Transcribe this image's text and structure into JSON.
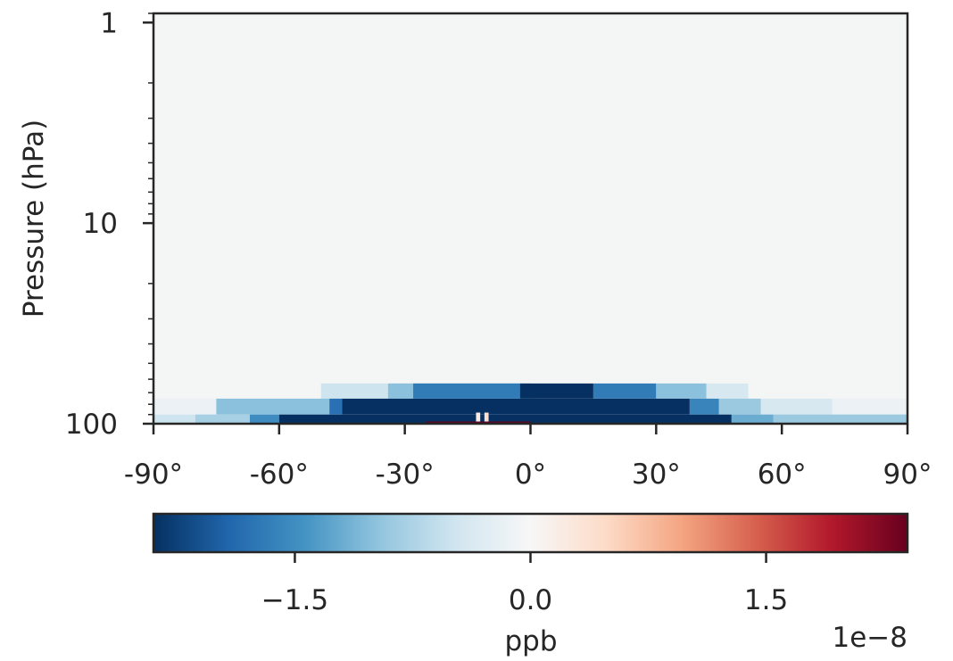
{
  "chart_data": {
    "type": "heatmap",
    "title": "",
    "xlabel": "",
    "ylabel": "Pressure (hPa)",
    "x_axis": {
      "range": [
        -90,
        90
      ],
      "ticks": [
        -90,
        -60,
        -30,
        0,
        30,
        60,
        90
      ],
      "tick_labels": [
        "-90°",
        "-60°",
        "-30°",
        "0°",
        "30°",
        "60°",
        "90°"
      ]
    },
    "y_axis": {
      "scale": "log",
      "inverted": true,
      "range": [
        100,
        0.9
      ],
      "ticks": [
        1,
        10,
        100
      ],
      "tick_labels": [
        "1",
        "10",
        "100"
      ]
    },
    "colormap": "RdBu_r",
    "value_range": [
      -2.4e-08,
      2.4e-08
    ],
    "colorbar": {
      "label": "ppb",
      "ticks": [
        -1.5,
        0.0,
        1.5
      ],
      "tick_labels": [
        "−1.5",
        "0.0",
        "1.5"
      ],
      "offset_text": "1e−8",
      "orientation": "horizontal",
      "placement": "bottom"
    },
    "background_value_ppb": 0,
    "bands": [
      {
        "p_top": 63,
        "p_bottom": 75,
        "segments": [
          [
            -50,
            0,
            -0.5
          ],
          [
            -34,
            0,
            -1.0
          ],
          [
            -28,
            -2.5,
            -1.7
          ],
          [
            -2.5,
            15,
            -2.4
          ],
          [
            15,
            30,
            -1.7
          ],
          [
            30,
            42,
            -1.0
          ],
          [
            42,
            52,
            -0.4
          ]
        ]
      },
      {
        "p_top": 75,
        "p_bottom": 90,
        "segments": [
          [
            -90,
            90,
            -0.15
          ],
          [
            -75,
            -48,
            -1.0
          ],
          [
            -48,
            -45,
            -1.8
          ],
          [
            -45,
            38,
            -2.4
          ],
          [
            38,
            45,
            -1.6
          ],
          [
            45,
            55,
            -0.9
          ],
          [
            55,
            72,
            -0.4
          ]
        ]
      },
      {
        "p_top": 90,
        "p_bottom": 104,
        "segments": [
          [
            -90,
            90,
            -0.5
          ],
          [
            -80,
            -67,
            -0.8
          ],
          [
            -67,
            -60,
            -1.5
          ],
          [
            -60,
            48,
            -2.4
          ],
          [
            48,
            58,
            -1.2
          ],
          [
            58,
            90,
            -0.9
          ]
        ]
      }
    ],
    "highlights": [
      {
        "lon_start": -25,
        "lon_end": 0,
        "p_top": 97.5,
        "p_bottom": 104,
        "value_ppb": 2.4e-08
      },
      {
        "lon_start": -13,
        "lon_end": -12,
        "p_top": 88,
        "p_bottom": 97.5,
        "value_ppb": 2e-09
      },
      {
        "lon_start": -11,
        "lon_end": -10,
        "p_top": 88,
        "p_bottom": 97.5,
        "value_ppb": 4e-09
      }
    ]
  }
}
